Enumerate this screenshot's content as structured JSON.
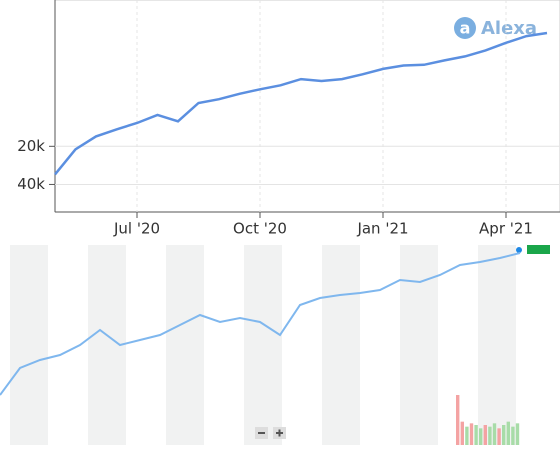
{
  "chart_data": [
    {
      "type": "line",
      "logo": "Alexa",
      "logo_icon": "a",
      "color": "#5b8fe0",
      "categories": [
        null,
        null,
        null,
        null,
        "Jul '20",
        null,
        null,
        null,
        null,
        null,
        "Oct '20",
        null,
        null,
        null,
        null,
        null,
        "Jan '21",
        null,
        null,
        null,
        null,
        null,
        "Apr '21",
        null,
        null
      ],
      "values": [
        33300,
        21100,
        16700,
        14700,
        13100,
        11300,
        12700,
        9100,
        8500,
        7700,
        7100,
        6600,
        5900,
        6100,
        5900,
        5400,
        4900,
        4600,
        4550,
        4200,
        3900,
        3500,
        3050,
        2700,
        2550
      ],
      "ylim": [
        66000,
        1400
      ],
      "log_scale": true,
      "grid": true,
      "yticks": [
        {
          "value": 20000,
          "label": "20k"
        },
        {
          "value": 40000,
          "label": "40k"
        }
      ]
    },
    {
      "type": "line",
      "color": "#7fb7ee",
      "ylim": [
        0,
        100
      ],
      "values": [
        25,
        38.5,
        42.5,
        45,
        50,
        57.5,
        50,
        52.5,
        55,
        60,
        65,
        61.5,
        63.5,
        61.5,
        55,
        70,
        73.5,
        75,
        76,
        77.5,
        82.5,
        81.5,
        85,
        90,
        91.5,
        93.5,
        96
      ],
      "bar_values": [
        30,
        14,
        11,
        13,
        12,
        10,
        12,
        11,
        13,
        10,
        12,
        14,
        11,
        13
      ],
      "bar_colors": [
        "#f4a3a3",
        "#f4a3a3",
        "#a8dca8",
        "#f4a3a3",
        "#a8dca8",
        "#a8dca8",
        "#f4a3a3",
        "#a8dca8",
        "#a8dca8",
        "#f4a3a3",
        "#a8dca8",
        "#a8dca8",
        "#a8dca8",
        "#a8dca8"
      ]
    }
  ]
}
